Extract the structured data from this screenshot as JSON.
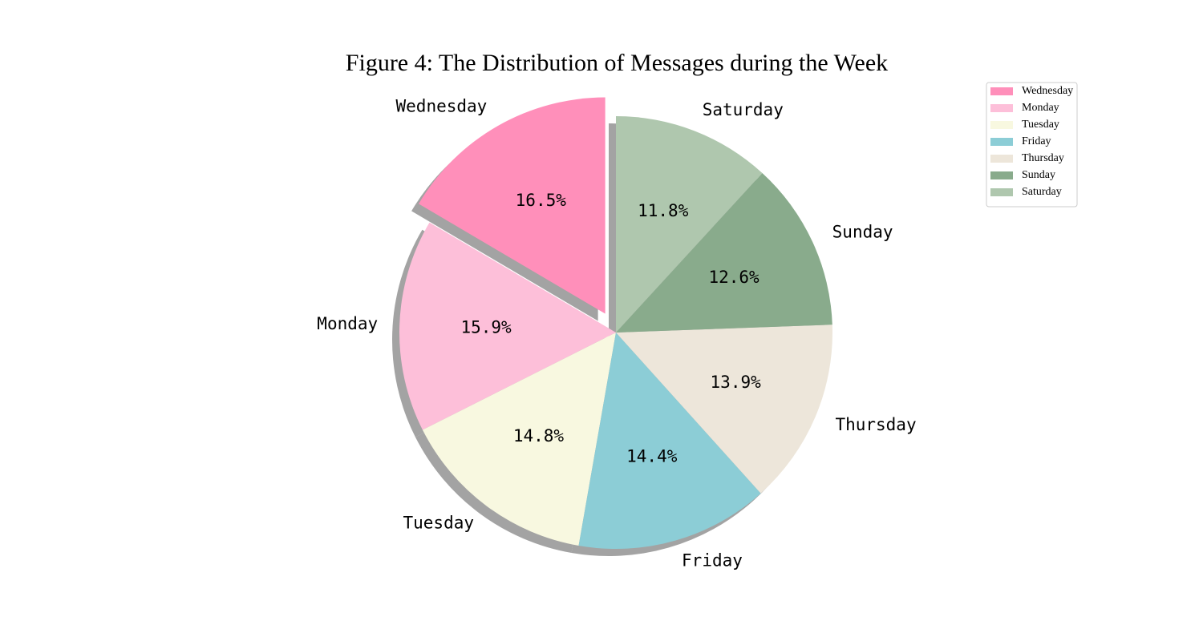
{
  "chart_data": {
    "type": "pie",
    "title": "Figure 4: The Distribution of Messages during the Week",
    "slices": [
      {
        "label": "Wednesday",
        "value": 16.5,
        "pct_text": "16.5%",
        "color": "#ff8fba",
        "exploded": true
      },
      {
        "label": "Monday",
        "value": 15.9,
        "pct_text": "15.9%",
        "color": "#fdbfd9"
      },
      {
        "label": "Tuesday",
        "value": 14.8,
        "pct_text": "14.8%",
        "color": "#f8f8e0"
      },
      {
        "label": "Friday",
        "value": 14.4,
        "pct_text": "14.4%",
        "color": "#8ccdd6"
      },
      {
        "label": "Thursday",
        "value": 13.9,
        "pct_text": "13.9%",
        "color": "#ede6da"
      },
      {
        "label": "Sunday",
        "value": 12.6,
        "pct_text": "12.6%",
        "color": "#89ab8c"
      },
      {
        "label": "Saturday",
        "value": 11.8,
        "pct_text": "11.8%",
        "color": "#afc7ae"
      }
    ],
    "start_angle_deg": 90,
    "direction": "counterclockwise",
    "shadow": true,
    "legend": {
      "placement": "top-right",
      "entries": [
        "Wednesday",
        "Monday",
        "Tuesday",
        "Friday",
        "Thursday",
        "Sunday",
        "Saturday"
      ]
    }
  }
}
